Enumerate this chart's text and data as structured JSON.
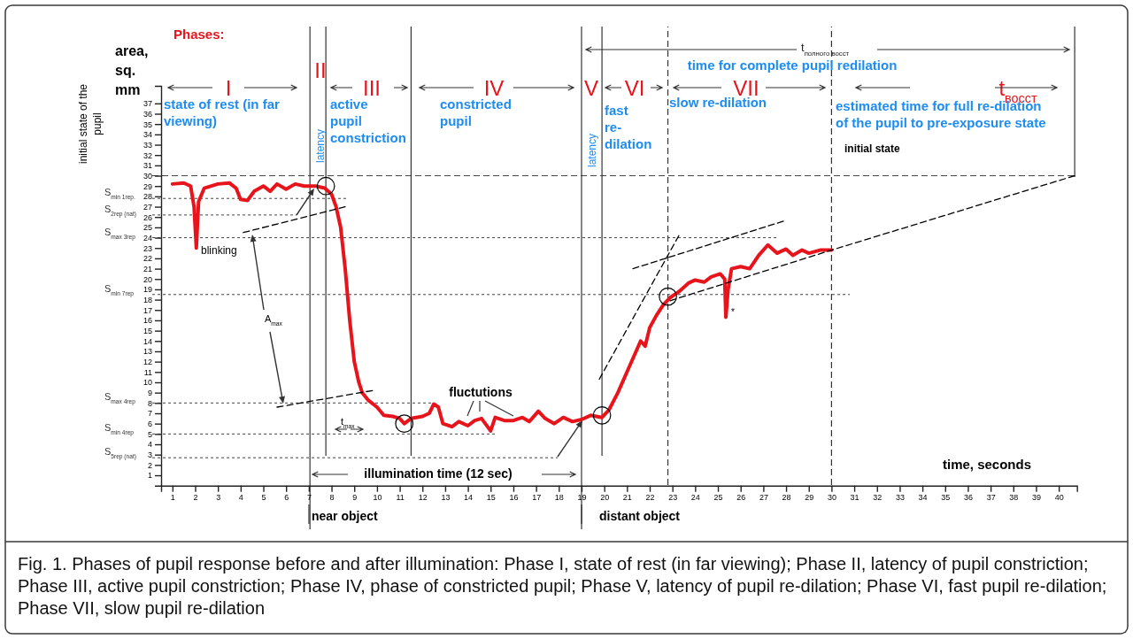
{
  "chart_data": {
    "type": "line",
    "xlabel": "time, seconds",
    "ylabel": "area, sq. mm",
    "xlim": [
      0.5,
      40.8
    ],
    "ylim": [
      0,
      38.7
    ],
    "xticks": [
      1,
      2,
      3,
      4,
      5,
      6,
      7,
      8,
      9,
      10,
      11,
      12,
      13,
      14,
      15,
      16,
      17,
      18,
      19,
      20,
      21,
      22,
      23,
      24,
      25,
      26,
      27,
      28,
      29,
      30,
      31,
      32,
      33,
      34,
      35,
      36,
      37,
      38,
      39,
      40
    ],
    "yticks": [
      1,
      2,
      3,
      4,
      5,
      6,
      7,
      8,
      9,
      10,
      11,
      12,
      13,
      14,
      15,
      16,
      17,
      18,
      19,
      20,
      21,
      22,
      23,
      24,
      25,
      26,
      27,
      28,
      29,
      30,
      31,
      32,
      33,
      34,
      35,
      36,
      37
    ],
    "series": [
      {
        "color": "#e8141c",
        "line_style": "solid",
        "x": [
          1,
          1.5,
          1.8,
          1.95,
          2.05,
          2.15,
          2.4,
          3,
          3.5,
          3.8,
          4,
          4.3,
          4.6,
          5,
          5.3,
          5.6,
          6,
          6.4,
          6.8,
          7.3,
          7.7,
          8,
          8.2,
          8.4,
          8.6,
          8.8,
          9,
          9.2,
          9.35,
          9.6,
          10,
          10.3,
          10.7,
          11,
          11.2,
          11.5,
          12,
          12.3,
          12.5,
          12.7,
          12.9,
          13.3,
          13.6,
          14,
          14.3,
          14.6,
          14.8,
          15,
          15.2,
          15.6,
          16,
          16.4,
          16.7,
          17.1,
          17.4,
          17.8,
          18.2,
          18.6,
          19,
          19.4,
          19.9,
          20.2,
          20.6,
          21,
          21.4,
          21.6,
          21.8,
          22,
          22.3,
          22.6,
          22.9,
          23.3,
          23.7,
          24,
          24.4,
          24.7,
          25.1,
          25.3,
          25.35,
          25.45,
          25.6,
          26,
          26.4,
          26.8,
          27.2,
          27.6,
          28,
          28.3,
          28.7,
          29,
          29.5,
          30
        ],
        "values": [
          29.2,
          29.3,
          29,
          27,
          23,
          27.5,
          28.8,
          29.2,
          29.3,
          28.8,
          27.7,
          27.6,
          28.5,
          29,
          28.5,
          29.2,
          28.7,
          29.2,
          29,
          29,
          28.8,
          28.2,
          27,
          25,
          21,
          16,
          12,
          10,
          9,
          8.3,
          7.6,
          6.8,
          6.7,
          6.5,
          6,
          6.5,
          6.7,
          7,
          7.9,
          7.6,
          6,
          5.7,
          6.2,
          5.8,
          6.3,
          6.5,
          5.9,
          5.3,
          6.6,
          6.3,
          6.3,
          6.6,
          6.2,
          7.2,
          6.5,
          6,
          6.6,
          6.2,
          6.4,
          6.8,
          6.6,
          7.3,
          9,
          11,
          13,
          14,
          13.5,
          15.3,
          16.5,
          17.5,
          18.2,
          18.8,
          19.6,
          19.9,
          19.7,
          20.2,
          20.5,
          20,
          16.3,
          19,
          21,
          21.2,
          21,
          22.3,
          23.3,
          22.5,
          22.9,
          22.3,
          22.8,
          22.5,
          22.8,
          22.8
        ]
      },
      {
        "type": "line",
        "color": "#000000",
        "line_style": "dashed",
        "x": [
          22.9,
          30,
          40.7
        ],
        "values": [
          17.9,
          22.8,
          30
        ]
      },
      {
        "type": "line",
        "color": "#000000",
        "line_style": "dashed",
        "x": [
          21.26,
          27.88
        ],
        "values": [
          21,
          25.6
        ]
      },
      {
        "type": "line",
        "color": "#000000",
        "line_style": "dashed",
        "x": [
          19.78,
          23.28
        ],
        "values": [
          10.3,
          24.2
        ]
      },
      {
        "type": "line",
        "color": "#000000",
        "line_style": "dashed",
        "x": [
          4.12,
          8.6
        ],
        "values": [
          24.5,
          27
        ]
      },
      {
        "type": "line",
        "color": "#000000",
        "line_style": "dashed",
        "x": [
          5.6,
          9.8
        ],
        "values": [
          7.6,
          9.2
        ]
      },
      {
        "type": "scatter",
        "color": "#000000",
        "marker": "circle",
        "x": [
          7.75,
          11.2,
          19.9,
          22.8
        ],
        "values": [
          29,
          6,
          6.8,
          18.3
        ]
      }
    ],
    "ref_lines": [
      {
        "axis": "y",
        "value": 30,
        "label": null,
        "line_style": "dashed"
      },
      {
        "axis": "y",
        "value": 27.8,
        "label": "S$_{min 1rep.}$",
        "line_style": "dotted"
      },
      {
        "axis": "y",
        "value": 26.2,
        "label": "S$_{2rep (nat)}$",
        "line_style": "dotted"
      },
      {
        "axis": "y",
        "value": 24,
        "label": "S$_{max 3rep}$",
        "line_style": "dotted"
      },
      {
        "axis": "y",
        "value": 18.5,
        "label": "S$_{min 7rep}$",
        "line_style": "dotted"
      },
      {
        "axis": "y",
        "value": 8,
        "label": "S$_{max 4rep}$",
        "line_style": "dotted"
      },
      {
        "axis": "y",
        "value": 5,
        "label": "S$_{min 4rep}$",
        "line_style": "dotted"
      },
      {
        "axis": "y",
        "value": 2.7,
        "label": "S$_{5rep (nat)}$",
        "line_style": "dotted"
      },
      {
        "axis": "x",
        "value": 7.05,
        "label": null,
        "line_style": "solid"
      },
      {
        "axis": "x",
        "value": 7.75,
        "label": null,
        "line_style": "solid"
      },
      {
        "axis": "x",
        "value": 11.5,
        "label": null,
        "line_style": "solid"
      },
      {
        "axis": "x",
        "value": 19,
        "label": null,
        "line_style": "solid"
      },
      {
        "axis": "x",
        "value": 19.9,
        "label": null,
        "line_style": "solid"
      },
      {
        "axis": "x",
        "value": 22.8,
        "label": null,
        "line_style": "dashed"
      },
      {
        "axis": "x",
        "value": 30,
        "label": null,
        "line_style": "dashed"
      },
      {
        "axis": "x",
        "value": 40.7,
        "label": null,
        "line_style": "solid"
      }
    ],
    "annotations": [
      "Phases:",
      "I",
      "II",
      "III",
      "IV",
      "V",
      "VI",
      "VII",
      "t$_{восст}$",
      "state of rest (in far viewing)",
      "active pupil constriction",
      "constricted pupil",
      "fast re-dilation",
      "slow re-dilation",
      "estimated time for full re-dilation of the pupil to pre-exposure state",
      "time for complete pupil redilation",
      "t$_{полного восст}$",
      "initial state",
      "latency",
      "latency",
      "initial state of the pupil",
      "illumination time (12 sec)",
      "near object",
      "distant object",
      "A$_{max}$",
      "t$_{max}$",
      "fluctutions",
      "blinking",
      "*",
      "Fig. 1. Phases of pupil response before and after illumination:  Phase I, state of rest (in far viewing); Phase II, latency of pupil constriction; Phase III, active pupil constriction; Phase IV, phase of constricted pupil; Phase V, latency of pupil re-dilation; Phase VI, fast pupil re-dilation; Phase VII, slow pupil re-dilation"
    ]
  }
}
